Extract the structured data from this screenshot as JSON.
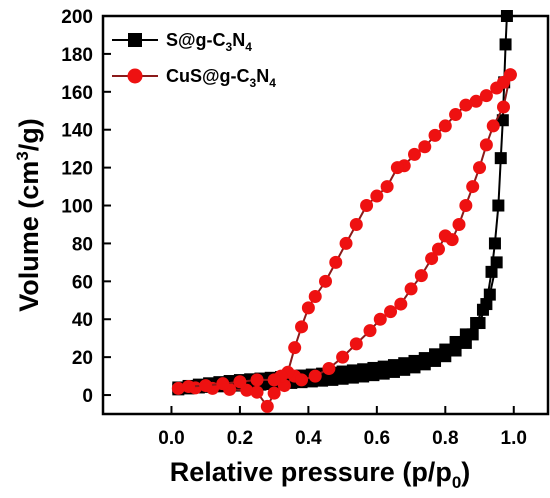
{
  "chart_data": {
    "type": "scatter",
    "title": "",
    "xlabel": "Relative pressure (p/p0)",
    "ylabel": "Volume (cm3/g)",
    "xlim": [
      -0.2,
      1.1
    ],
    "ylim": [
      -10,
      200
    ],
    "xticks": [
      "0.0",
      "0.2",
      "0.4",
      "0.6",
      "0.8",
      "1.0"
    ],
    "xtick_values": [
      0,
      0.2,
      0.4,
      0.6,
      0.8,
      1.0
    ],
    "yticks": [
      "0",
      "20",
      "40",
      "60",
      "80",
      "100",
      "120",
      "140",
      "160",
      "180",
      "200"
    ],
    "ytick_values": [
      0,
      20,
      40,
      60,
      80,
      100,
      120,
      140,
      160,
      180,
      200
    ],
    "legend_position": "top-left",
    "grid": false,
    "series": [
      {
        "name": "S@g-C3N4",
        "legend": {
          "base": "S@g-C",
          "sub1": "3",
          "mid": "N",
          "sub2": "4"
        },
        "marker": "square",
        "color": "#000000",
        "adsorption": [
          [
            0.02,
            3
          ],
          [
            0.05,
            3.5
          ],
          [
            0.08,
            4
          ],
          [
            0.11,
            4.3
          ],
          [
            0.14,
            4.6
          ],
          [
            0.17,
            4.8
          ],
          [
            0.2,
            5
          ],
          [
            0.23,
            5.3
          ],
          [
            0.26,
            5.5
          ],
          [
            0.29,
            5.8
          ],
          [
            0.32,
            6
          ],
          [
            0.35,
            6.4
          ],
          [
            0.38,
            6.8
          ],
          [
            0.41,
            7.2
          ],
          [
            0.44,
            7.6
          ],
          [
            0.47,
            8
          ],
          [
            0.5,
            8.6
          ],
          [
            0.53,
            9.2
          ],
          [
            0.56,
            9.8
          ],
          [
            0.59,
            10.5
          ],
          [
            0.62,
            11.3
          ],
          [
            0.65,
            12.2
          ],
          [
            0.68,
            13.3
          ],
          [
            0.71,
            14.6
          ],
          [
            0.74,
            16.2
          ],
          [
            0.77,
            18
          ],
          [
            0.8,
            20.5
          ],
          [
            0.83,
            23.5
          ],
          [
            0.86,
            27.5
          ],
          [
            0.88,
            32
          ],
          [
            0.9,
            38
          ],
          [
            0.92,
            48
          ],
          [
            0.935,
            65
          ],
          [
            0.945,
            80
          ],
          [
            0.955,
            100
          ],
          [
            0.962,
            125
          ],
          [
            0.968,
            145
          ],
          [
            0.972,
            165
          ],
          [
            0.976,
            185
          ],
          [
            0.98,
            200
          ]
        ],
        "desorption": [
          [
            0.95,
            70
          ],
          [
            0.93,
            53
          ],
          [
            0.91,
            45
          ],
          [
            0.89,
            38
          ],
          [
            0.86,
            32
          ],
          [
            0.83,
            28
          ],
          [
            0.8,
            24
          ],
          [
            0.77,
            21.5
          ],
          [
            0.74,
            19.5
          ],
          [
            0.71,
            18
          ],
          [
            0.68,
            16.8
          ],
          [
            0.65,
            15.8
          ],
          [
            0.62,
            15
          ],
          [
            0.59,
            14.3
          ],
          [
            0.56,
            13.6
          ],
          [
            0.53,
            13
          ],
          [
            0.5,
            12.4
          ],
          [
            0.47,
            11.8
          ],
          [
            0.44,
            11.3
          ],
          [
            0.41,
            10.8
          ],
          [
            0.38,
            10.3
          ],
          [
            0.35,
            9.9
          ],
          [
            0.32,
            9.5
          ],
          [
            0.29,
            9.1
          ],
          [
            0.26,
            8.7
          ],
          [
            0.23,
            8.3
          ],
          [
            0.2,
            7.9
          ],
          [
            0.17,
            7.4
          ],
          [
            0.14,
            6.8
          ],
          [
            0.11,
            6.2
          ],
          [
            0.08,
            5.5
          ],
          [
            0.05,
            4.8
          ],
          [
            0.02,
            4
          ]
        ]
      },
      {
        "name": "CuS@g-C3N4",
        "legend": {
          "base": "CuS@g-C",
          "sub1": "3",
          "mid": "N",
          "sub2": "4"
        },
        "marker": "circle",
        "color": "#ee1111",
        "line_color": "#8b1a1a",
        "adsorption": [
          [
            0.02,
            3.5
          ],
          [
            0.07,
            3.8
          ],
          [
            0.12,
            3.5
          ],
          [
            0.17,
            3
          ],
          [
            0.22,
            2.5
          ],
          [
            0.25,
            1.5
          ],
          [
            0.28,
            -6
          ],
          [
            0.3,
            1
          ],
          [
            0.33,
            5
          ],
          [
            0.36,
            10
          ],
          [
            0.38,
            8
          ],
          [
            0.42,
            10
          ],
          [
            0.46,
            14
          ],
          [
            0.5,
            20
          ],
          [
            0.54,
            27
          ],
          [
            0.58,
            34
          ],
          [
            0.61,
            40
          ],
          [
            0.64,
            44
          ],
          [
            0.67,
            48
          ],
          [
            0.7,
            56
          ],
          [
            0.73,
            63
          ],
          [
            0.76,
            72
          ],
          [
            0.78,
            77
          ],
          [
            0.8,
            84
          ],
          [
            0.82,
            82
          ],
          [
            0.84,
            90
          ],
          [
            0.86,
            100
          ],
          [
            0.88,
            110
          ],
          [
            0.9,
            120
          ],
          [
            0.92,
            132
          ],
          [
            0.94,
            142
          ],
          [
            0.97,
            152
          ],
          [
            0.99,
            169
          ]
        ],
        "desorption": [
          [
            0.99,
            169
          ],
          [
            0.97,
            165
          ],
          [
            0.95,
            162
          ],
          [
            0.92,
            158
          ],
          [
            0.89,
            155
          ],
          [
            0.86,
            153
          ],
          [
            0.83,
            148
          ],
          [
            0.8,
            142
          ],
          [
            0.77,
            137
          ],
          [
            0.74,
            131
          ],
          [
            0.71,
            127
          ],
          [
            0.68,
            121
          ],
          [
            0.66,
            120
          ],
          [
            0.63,
            110
          ],
          [
            0.6,
            105
          ],
          [
            0.57,
            100
          ],
          [
            0.54,
            90
          ],
          [
            0.51,
            80
          ],
          [
            0.48,
            70
          ],
          [
            0.45,
            60
          ],
          [
            0.42,
            52
          ],
          [
            0.4,
            46
          ],
          [
            0.38,
            36
          ],
          [
            0.36,
            25
          ],
          [
            0.34,
            12
          ],
          [
            0.32,
            10
          ],
          [
            0.3,
            8
          ],
          [
            0.25,
            8
          ],
          [
            0.2,
            7
          ],
          [
            0.15,
            6
          ],
          [
            0.1,
            5
          ],
          [
            0.05,
            4.5
          ]
        ]
      }
    ]
  }
}
